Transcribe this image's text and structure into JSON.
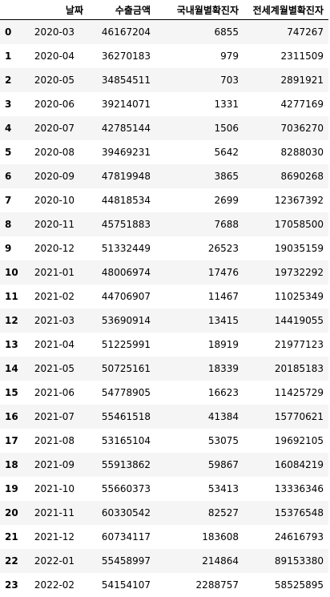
{
  "table": {
    "columns": [
      "",
      "날짜",
      "수출금액",
      "국내월별확진자",
      "전세계월별확진자"
    ],
    "rows": [
      {
        "idx": "0",
        "date": "2020-03",
        "export": "46167204",
        "domestic": "6855",
        "global": "747267"
      },
      {
        "idx": "1",
        "date": "2020-04",
        "export": "36270183",
        "domestic": "979",
        "global": "2311509"
      },
      {
        "idx": "2",
        "date": "2020-05",
        "export": "34854511",
        "domestic": "703",
        "global": "2891921"
      },
      {
        "idx": "3",
        "date": "2020-06",
        "export": "39214071",
        "domestic": "1331",
        "global": "4277169"
      },
      {
        "idx": "4",
        "date": "2020-07",
        "export": "42785144",
        "domestic": "1506",
        "global": "7036270"
      },
      {
        "idx": "5",
        "date": "2020-08",
        "export": "39469231",
        "domestic": "5642",
        "global": "8288030"
      },
      {
        "idx": "6",
        "date": "2020-09",
        "export": "47819948",
        "domestic": "3865",
        "global": "8690268"
      },
      {
        "idx": "7",
        "date": "2020-10",
        "export": "44818534",
        "domestic": "2699",
        "global": "12367392"
      },
      {
        "idx": "8",
        "date": "2020-11",
        "export": "45751883",
        "domestic": "7688",
        "global": "17058500"
      },
      {
        "idx": "9",
        "date": "2020-12",
        "export": "51332449",
        "domestic": "26523",
        "global": "19035159"
      },
      {
        "idx": "10",
        "date": "2021-01",
        "export": "48006974",
        "domestic": "17476",
        "global": "19732292"
      },
      {
        "idx": "11",
        "date": "2021-02",
        "export": "44706907",
        "domestic": "11467",
        "global": "11025349"
      },
      {
        "idx": "12",
        "date": "2021-03",
        "export": "53690914",
        "domestic": "13415",
        "global": "14419055"
      },
      {
        "idx": "13",
        "date": "2021-04",
        "export": "51225991",
        "domestic": "18919",
        "global": "21977123"
      },
      {
        "idx": "14",
        "date": "2021-05",
        "export": "50725161",
        "domestic": "18339",
        "global": "20185183"
      },
      {
        "idx": "15",
        "date": "2021-06",
        "export": "54778905",
        "domestic": "16623",
        "global": "11425729"
      },
      {
        "idx": "16",
        "date": "2021-07",
        "export": "55461518",
        "domestic": "41384",
        "global": "15770621"
      },
      {
        "idx": "17",
        "date": "2021-08",
        "export": "53165104",
        "domestic": "53075",
        "global": "19692105"
      },
      {
        "idx": "18",
        "date": "2021-09",
        "export": "55913862",
        "domestic": "59867",
        "global": "16084219"
      },
      {
        "idx": "19",
        "date": "2021-10",
        "export": "55660373",
        "domestic": "53413",
        "global": "13336346"
      },
      {
        "idx": "20",
        "date": "2021-11",
        "export": "60330542",
        "domestic": "82527",
        "global": "15376548"
      },
      {
        "idx": "21",
        "date": "2021-12",
        "export": "60734117",
        "domestic": "183608",
        "global": "24616793"
      },
      {
        "idx": "22",
        "date": "2022-01",
        "export": "55458997",
        "domestic": "214864",
        "global": "89153380"
      },
      {
        "idx": "23",
        "date": "2022-02",
        "export": "54154107",
        "domestic": "2288757",
        "global": "58525895"
      }
    ]
  }
}
